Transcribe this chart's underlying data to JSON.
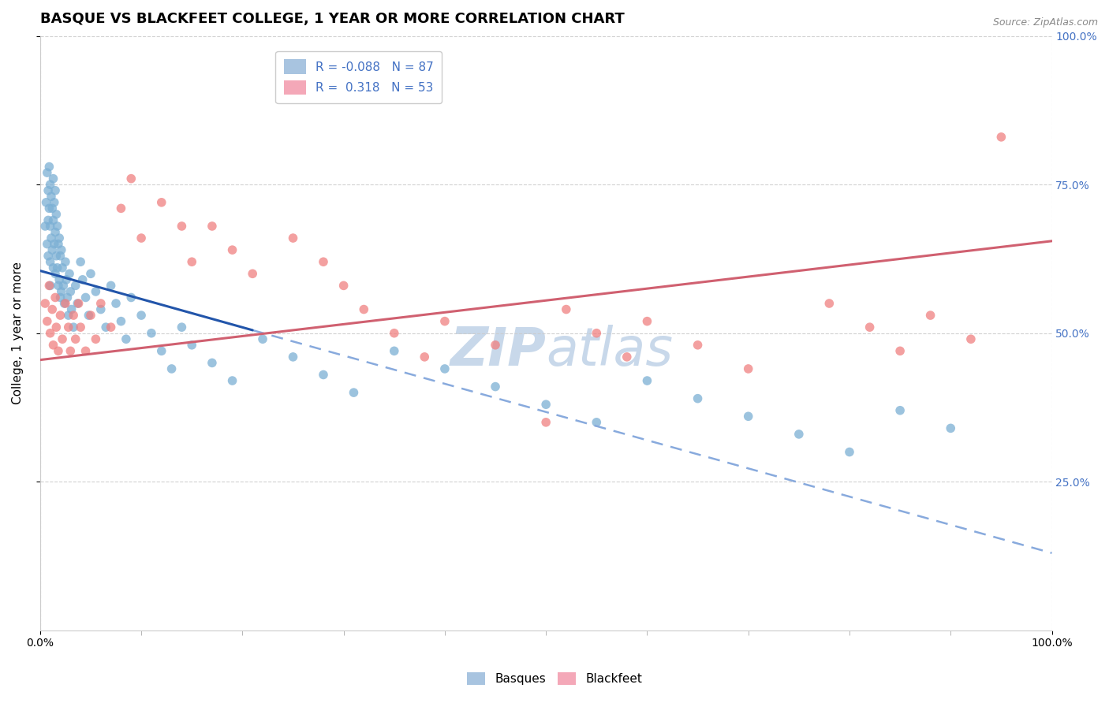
{
  "title": "BASQUE VS BLACKFEET COLLEGE, 1 YEAR OR MORE CORRELATION CHART",
  "source_text": "Source: ZipAtlas.com",
  "ylabel": "College, 1 year or more",
  "xlim": [
    0.0,
    1.0
  ],
  "ylim": [
    0.0,
    1.0
  ],
  "basques_color": "#7bafd4",
  "blackfeet_color": "#f08080",
  "basques_R": -0.088,
  "basques_N": 87,
  "blackfeet_R": 0.318,
  "blackfeet_N": 53,
  "trend_blue_color": "#2255aa",
  "trend_pink_color": "#d06070",
  "trend_blue_dashed_color": "#88aadd",
  "background_color": "#ffffff",
  "grid_color": "#cccccc",
  "title_fontsize": 13,
  "axis_label_fontsize": 11,
  "tick_fontsize": 10,
  "watermark_color": "#c8d8ea",
  "blue_line_x0": 0.0,
  "blue_line_y0": 0.605,
  "blue_line_x_solid_end": 0.21,
  "blue_line_y_solid_end": 0.505,
  "blue_line_x1": 1.0,
  "blue_line_y1": 0.13,
  "pink_line_x0": 0.0,
  "pink_line_y0": 0.455,
  "pink_line_x1": 1.0,
  "pink_line_y1": 0.655,
  "basques_x": [
    0.005,
    0.006,
    0.007,
    0.007,
    0.008,
    0.008,
    0.008,
    0.009,
    0.009,
    0.01,
    0.01,
    0.01,
    0.01,
    0.011,
    0.011,
    0.012,
    0.012,
    0.013,
    0.013,
    0.013,
    0.014,
    0.014,
    0.015,
    0.015,
    0.015,
    0.016,
    0.016,
    0.017,
    0.017,
    0.018,
    0.018,
    0.019,
    0.019,
    0.02,
    0.02,
    0.021,
    0.021,
    0.022,
    0.023,
    0.024,
    0.025,
    0.026,
    0.027,
    0.028,
    0.029,
    0.03,
    0.031,
    0.033,
    0.035,
    0.037,
    0.04,
    0.042,
    0.045,
    0.048,
    0.05,
    0.055,
    0.06,
    0.065,
    0.07,
    0.075,
    0.08,
    0.085,
    0.09,
    0.1,
    0.11,
    0.12,
    0.13,
    0.14,
    0.15,
    0.17,
    0.19,
    0.22,
    0.25,
    0.28,
    0.31,
    0.35,
    0.4,
    0.45,
    0.5,
    0.55,
    0.6,
    0.65,
    0.7,
    0.75,
    0.8,
    0.85,
    0.9
  ],
  "basques_y": [
    0.68,
    0.72,
    0.77,
    0.65,
    0.74,
    0.69,
    0.63,
    0.78,
    0.71,
    0.75,
    0.68,
    0.62,
    0.58,
    0.73,
    0.66,
    0.71,
    0.64,
    0.76,
    0.69,
    0.61,
    0.72,
    0.65,
    0.74,
    0.67,
    0.6,
    0.7,
    0.63,
    0.68,
    0.61,
    0.65,
    0.58,
    0.66,
    0.59,
    0.63,
    0.56,
    0.64,
    0.57,
    0.61,
    0.58,
    0.55,
    0.62,
    0.59,
    0.56,
    0.53,
    0.6,
    0.57,
    0.54,
    0.51,
    0.58,
    0.55,
    0.62,
    0.59,
    0.56,
    0.53,
    0.6,
    0.57,
    0.54,
    0.51,
    0.58,
    0.55,
    0.52,
    0.49,
    0.56,
    0.53,
    0.5,
    0.47,
    0.44,
    0.51,
    0.48,
    0.45,
    0.42,
    0.49,
    0.46,
    0.43,
    0.4,
    0.47,
    0.44,
    0.41,
    0.38,
    0.35,
    0.42,
    0.39,
    0.36,
    0.33,
    0.3,
    0.37,
    0.34
  ],
  "blackfeet_x": [
    0.005,
    0.007,
    0.009,
    0.01,
    0.012,
    0.013,
    0.015,
    0.016,
    0.018,
    0.02,
    0.022,
    0.025,
    0.028,
    0.03,
    0.033,
    0.035,
    0.038,
    0.04,
    0.045,
    0.05,
    0.055,
    0.06,
    0.07,
    0.08,
    0.09,
    0.1,
    0.12,
    0.14,
    0.15,
    0.17,
    0.19,
    0.21,
    0.25,
    0.28,
    0.3,
    0.32,
    0.35,
    0.38,
    0.4,
    0.45,
    0.5,
    0.52,
    0.55,
    0.58,
    0.6,
    0.65,
    0.7,
    0.78,
    0.82,
    0.85,
    0.88,
    0.92,
    0.95
  ],
  "blackfeet_y": [
    0.55,
    0.52,
    0.58,
    0.5,
    0.54,
    0.48,
    0.56,
    0.51,
    0.47,
    0.53,
    0.49,
    0.55,
    0.51,
    0.47,
    0.53,
    0.49,
    0.55,
    0.51,
    0.47,
    0.53,
    0.49,
    0.55,
    0.51,
    0.71,
    0.76,
    0.66,
    0.72,
    0.68,
    0.62,
    0.68,
    0.64,
    0.6,
    0.66,
    0.62,
    0.58,
    0.54,
    0.5,
    0.46,
    0.52,
    0.48,
    0.35,
    0.54,
    0.5,
    0.46,
    0.52,
    0.48,
    0.44,
    0.55,
    0.51,
    0.47,
    0.53,
    0.49,
    0.83
  ]
}
